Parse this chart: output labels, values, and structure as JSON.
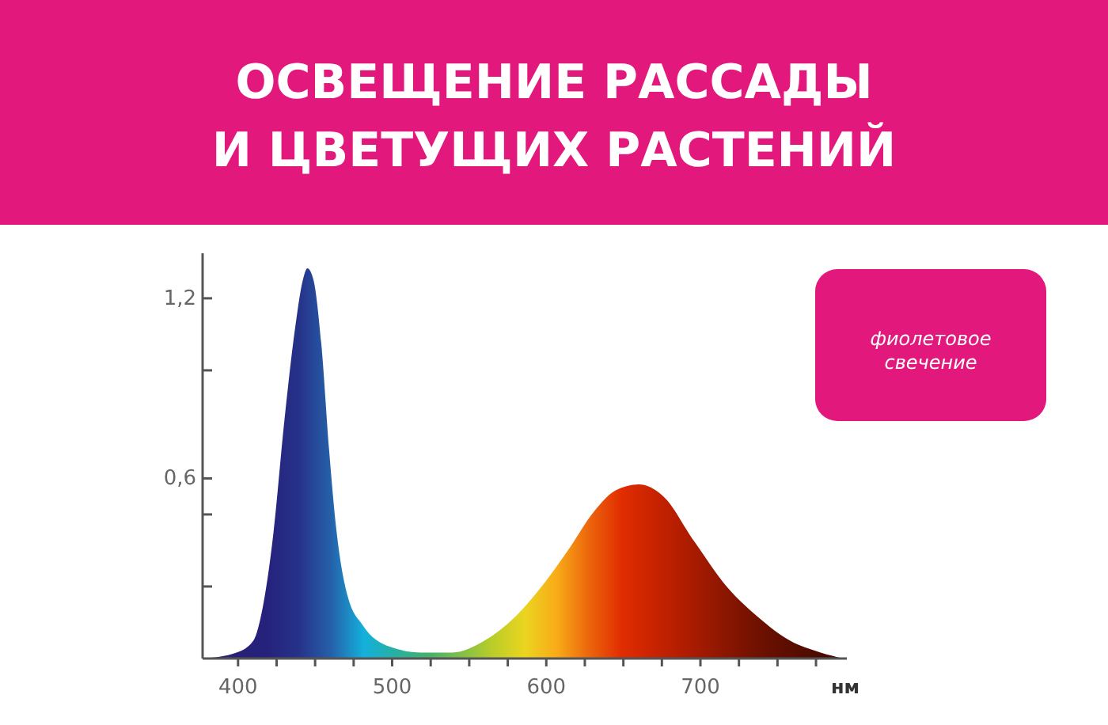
{
  "chart_data": {
    "type": "area",
    "title": "ОСВЕЩЕНИЕ РАССАДЫ\nИ ЦВЕТУЩИХ РАСТЕНИЙ",
    "xlabel": "нм",
    "annotations": [
      "фиолетовое свечение"
    ],
    "x": [
      377,
      399,
      410,
      416,
      423,
      430,
      437,
      442,
      445,
      449,
      454,
      459,
      464,
      471,
      481,
      498,
      519,
      539,
      560,
      580,
      597,
      614,
      631,
      645,
      660,
      676,
      696,
      717,
      737,
      758,
      778,
      793
    ],
    "series": [
      {
        "values": [
          0,
          0.02,
          0.06,
          0.17,
          0.42,
          0.79,
          1.1,
          1.26,
          1.3,
          1.26,
          1.05,
          0.7,
          0.42,
          0.21,
          0.11,
          0.04,
          0.02,
          0.02,
          0.06,
          0.14,
          0.24,
          0.36,
          0.49,
          0.56,
          0.58,
          0.54,
          0.39,
          0.24,
          0.14,
          0.06,
          0.02,
          0
        ]
      }
    ],
    "xlim": [
      377,
      795
    ],
    "ylim": [
      0,
      1.35
    ],
    "xticks": [
      400,
      {
        "value": 425,
        "label": null
      },
      {
        "value": 450,
        "label": null
      },
      {
        "value": 475,
        "label": null
      },
      500,
      {
        "value": 525,
        "label": null
      },
      {
        "value": 550,
        "label": null
      },
      {
        "value": 575,
        "label": null
      },
      600,
      {
        "value": 625,
        "label": null
      },
      {
        "value": 650,
        "label": null
      },
      {
        "value": 675,
        "label": null
      },
      700,
      {
        "value": 725,
        "label": null
      },
      {
        "value": 750,
        "label": null
      },
      {
        "value": 775,
        "label": null
      }
    ],
    "yticks": [
      {
        "value": 0.24,
        "label": null
      },
      {
        "value": 0.48,
        "label": null
      },
      {
        "value": 0.6,
        "label": "0,6"
      },
      {
        "value": 0.96,
        "label": null
      },
      {
        "value": 1.2,
        "label": "1,2"
      }
    ],
    "grid": false
  }
}
